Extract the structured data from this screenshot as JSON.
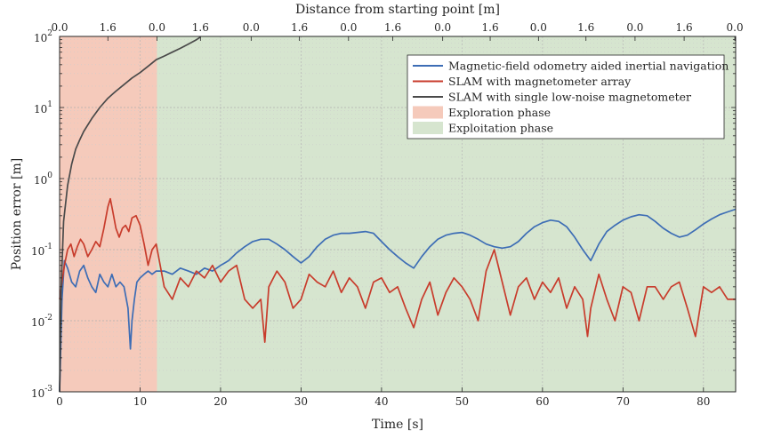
{
  "chart_data": {
    "type": "line",
    "xlabel": "Time [s]",
    "ylabel": "Position error [m]",
    "top_xlabel": "Distance from starting point [m]",
    "xlim": [
      0,
      84
    ],
    "ylim": [
      0.001,
      100
    ],
    "y_scale": "log",
    "grid": true,
    "legend_position": "top-right",
    "x_ticks": [
      "0",
      "10",
      "20",
      "30",
      "40",
      "50",
      "60",
      "70",
      "80"
    ],
    "x_tick_values": [
      0,
      10,
      20,
      30,
      40,
      50,
      60,
      70,
      80
    ],
    "y_ticks": [
      {
        "base": "10",
        "exp": "-3",
        "value": 0.001
      },
      {
        "base": "10",
        "exp": "-2",
        "value": 0.01
      },
      {
        "base": "10",
        "exp": "-1",
        "value": 0.1
      },
      {
        "base": "10",
        "exp": "0",
        "value": 1
      },
      {
        "base": "10",
        "exp": "1",
        "value": 10
      },
      {
        "base": "10",
        "exp": "2",
        "value": 100
      }
    ],
    "top_x_ticks": [
      {
        "label": "0.0",
        "t": 0
      },
      {
        "label": "1.6",
        "t": 6
      },
      {
        "label": "0.0",
        "t": 12.1
      },
      {
        "label": "1.6",
        "t": 17.5
      },
      {
        "label": "0.0",
        "t": 23.8
      },
      {
        "label": "1.6",
        "t": 29.8
      },
      {
        "label": "0.0",
        "t": 35.9
      },
      {
        "label": "1.6",
        "t": 41.4
      },
      {
        "label": "0.0",
        "t": 47.6
      },
      {
        "label": "1.6",
        "t": 53.5
      },
      {
        "label": "0.0",
        "t": 59.5
      },
      {
        "label": "1.6",
        "t": 65.4
      },
      {
        "label": "0.0",
        "t": 71.5
      },
      {
        "label": "1.6",
        "t": 77.6
      },
      {
        "label": "0.0",
        "t": 83.9
      }
    ],
    "phases": [
      {
        "name": "Exploration phase",
        "x_start": 0,
        "x_end": 12.1,
        "color": "#f5cabb"
      },
      {
        "name": "Exploitation phase",
        "x_start": 12.1,
        "x_end": 84,
        "color": "#d6e5cf"
      }
    ],
    "series": [
      {
        "name": "Magnetic-field odometry aided inertial navigation",
        "color": "#3d6db5",
        "x": [
          0,
          0.3,
          0.6,
          1.0,
          1.5,
          2.0,
          2.5,
          3.0,
          3.5,
          4.0,
          4.5,
          5.0,
          5.5,
          6.0,
          6.5,
          7.0,
          7.5,
          8.0,
          8.5,
          8.8,
          9.0,
          9.3,
          9.6,
          10.0,
          10.5,
          11.0,
          11.5,
          12.0,
          13,
          14,
          15,
          16,
          17,
          18,
          19,
          20,
          21,
          22,
          23,
          24,
          25,
          26,
          27,
          28,
          29,
          30,
          31,
          32,
          33,
          34,
          35,
          36,
          37,
          38,
          39,
          40,
          41,
          42,
          43,
          44,
          45,
          46,
          47,
          48,
          49,
          50,
          51,
          52,
          53,
          54,
          55,
          56,
          57,
          58,
          59,
          60,
          61,
          62,
          63,
          64,
          65,
          66,
          67,
          68,
          69,
          70,
          71,
          72,
          73,
          74,
          75,
          76,
          77,
          78,
          79,
          80,
          81,
          82,
          83,
          84
        ],
        "y": [
          0.001,
          0.02,
          0.07,
          0.055,
          0.035,
          0.03,
          0.05,
          0.06,
          0.04,
          0.03,
          0.025,
          0.045,
          0.035,
          0.03,
          0.045,
          0.03,
          0.035,
          0.03,
          0.015,
          0.004,
          0.01,
          0.02,
          0.035,
          0.04,
          0.045,
          0.05,
          0.045,
          0.05,
          0.05,
          0.045,
          0.055,
          0.05,
          0.045,
          0.055,
          0.05,
          0.06,
          0.07,
          0.09,
          0.11,
          0.13,
          0.14,
          0.14,
          0.12,
          0.1,
          0.08,
          0.065,
          0.08,
          0.11,
          0.14,
          0.16,
          0.17,
          0.17,
          0.175,
          0.18,
          0.17,
          0.13,
          0.1,
          0.08,
          0.065,
          0.055,
          0.08,
          0.11,
          0.14,
          0.16,
          0.17,
          0.175,
          0.16,
          0.14,
          0.12,
          0.11,
          0.105,
          0.11,
          0.13,
          0.17,
          0.21,
          0.24,
          0.26,
          0.25,
          0.21,
          0.15,
          0.1,
          0.07,
          0.12,
          0.18,
          0.22,
          0.26,
          0.29,
          0.31,
          0.3,
          0.25,
          0.2,
          0.17,
          0.15,
          0.16,
          0.19,
          0.23,
          0.27,
          0.31,
          0.34,
          0.37
        ]
      },
      {
        "name": "SLAM with magnetometer array",
        "color": "#c83c2c",
        "x": [
          0,
          0.3,
          0.6,
          1.0,
          1.4,
          1.8,
          2.2,
          2.6,
          3.0,
          3.5,
          4.0,
          4.5,
          5.0,
          5.5,
          6.0,
          6.3,
          6.6,
          7.0,
          7.4,
          7.8,
          8.2,
          8.6,
          9.0,
          9.5,
          10.0,
          10.5,
          11.0,
          11.5,
          12.0,
          13,
          14,
          15,
          16,
          17,
          18,
          19,
          20,
          21,
          22,
          23,
          24,
          25,
          25.5,
          26,
          27,
          28,
          29,
          30,
          31,
          32,
          33,
          34,
          35,
          36,
          37,
          38,
          39,
          40,
          41,
          42,
          43,
          44,
          45,
          46,
          47,
          48,
          49,
          50,
          51,
          52,
          53,
          54,
          55,
          56,
          57,
          58,
          59,
          60,
          61,
          62,
          63,
          64,
          65,
          65.6,
          66,
          67,
          68,
          69,
          70,
          71,
          72,
          73,
          74,
          75,
          76,
          77,
          78,
          79,
          80,
          81,
          82,
          83,
          84
        ],
        "y": [
          0.02,
          0.035,
          0.06,
          0.1,
          0.12,
          0.08,
          0.11,
          0.14,
          0.12,
          0.08,
          0.1,
          0.13,
          0.11,
          0.2,
          0.4,
          0.52,
          0.35,
          0.2,
          0.15,
          0.2,
          0.22,
          0.18,
          0.28,
          0.3,
          0.22,
          0.12,
          0.06,
          0.1,
          0.12,
          0.03,
          0.02,
          0.04,
          0.03,
          0.05,
          0.04,
          0.06,
          0.035,
          0.05,
          0.06,
          0.02,
          0.015,
          0.02,
          0.005,
          0.03,
          0.05,
          0.035,
          0.015,
          0.02,
          0.045,
          0.035,
          0.03,
          0.05,
          0.025,
          0.04,
          0.03,
          0.015,
          0.035,
          0.04,
          0.025,
          0.03,
          0.015,
          0.008,
          0.02,
          0.035,
          0.012,
          0.025,
          0.04,
          0.03,
          0.02,
          0.01,
          0.05,
          0.1,
          0.035,
          0.012,
          0.03,
          0.04,
          0.02,
          0.035,
          0.025,
          0.04,
          0.015,
          0.03,
          0.02,
          0.006,
          0.015,
          0.045,
          0.02,
          0.01,
          0.03,
          0.025,
          0.01,
          0.03,
          0.03,
          0.02,
          0.03,
          0.035,
          0.015,
          0.006,
          0.03,
          0.025,
          0.03,
          0.02,
          0.02
        ]
      },
      {
        "name": "SLAM with single low-noise magnetometer",
        "color": "#4a4a4a",
        "x": [
          0,
          0.2,
          0.5,
          1.0,
          1.5,
          2.0,
          2.5,
          3.0,
          4.0,
          5.0,
          6.0,
          7.0,
          8.0,
          9.0,
          10.0,
          11.0,
          12.0,
          13.0,
          14.0,
          15.0,
          16.0,
          17.0,
          17.5
        ],
        "y": [
          0.001,
          0.03,
          0.25,
          0.8,
          1.6,
          2.6,
          3.5,
          4.6,
          7.0,
          10.0,
          13.5,
          17.0,
          21.0,
          26.0,
          31.0,
          38.0,
          47.0,
          53.0,
          60.0,
          68.0,
          78.0,
          90.0,
          98.0
        ]
      }
    ]
  }
}
